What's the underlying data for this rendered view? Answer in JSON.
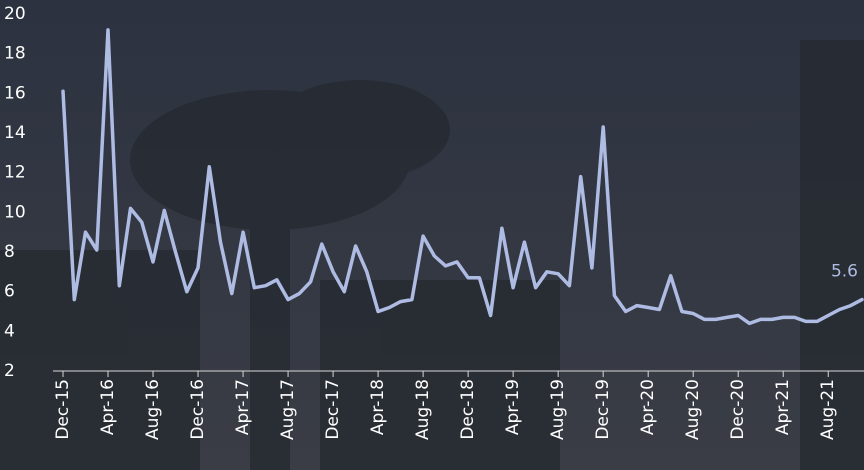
{
  "chart_data": {
    "type": "line",
    "categories": [
      "Dec-15",
      null,
      null,
      null,
      "Apr-16",
      null,
      null,
      null,
      "Aug-16",
      null,
      null,
      null,
      "Dec-16",
      null,
      null,
      null,
      "Apr-17",
      null,
      null,
      null,
      "Aug-17",
      null,
      null,
      null,
      "Dec-17",
      null,
      null,
      null,
      "Apr-18",
      null,
      null,
      null,
      "Aug-18",
      null,
      null,
      null,
      "Dec-18",
      null,
      null,
      null,
      "Apr-19",
      null,
      null,
      null,
      "Aug-19",
      null,
      null,
      null,
      "Dec-19",
      null,
      null,
      null,
      "Apr-20",
      null,
      null,
      null,
      "Aug-20",
      null,
      null,
      null,
      "Dec-20",
      null,
      null,
      null,
      "Apr-21",
      null,
      null,
      null,
      "Aug-21",
      null,
      null,
      null
    ],
    "series": [
      {
        "color": "#aebbe3",
        "values": [
          16.1,
          5.6,
          9.0,
          8.1,
          19.2,
          6.3,
          10.2,
          9.5,
          7.5,
          10.1,
          8.0,
          6.0,
          7.2,
          12.3,
          8.5,
          5.9,
          9.0,
          6.2,
          6.3,
          6.6,
          5.6,
          5.9,
          6.5,
          8.4,
          7.0,
          6.0,
          8.3,
          7.0,
          5.0,
          5.2,
          5.5,
          5.6,
          8.8,
          7.8,
          7.3,
          7.5,
          6.7,
          6.7,
          4.8,
          9.2,
          6.2,
          8.5,
          6.2,
          7.0,
          6.9,
          6.3,
          11.8,
          7.2,
          14.3,
          5.8,
          5.0,
          5.3,
          5.2,
          5.1,
          6.8,
          5.0,
          4.9,
          4.6,
          4.6,
          4.7,
          4.8,
          4.4,
          4.6,
          4.6,
          4.7,
          4.7,
          4.5,
          4.5,
          4.8,
          5.1,
          5.3,
          5.6
        ]
      }
    ],
    "ylim": [
      2,
      20
    ],
    "yticks": [
      2,
      4,
      6,
      8,
      10,
      12,
      14,
      16,
      18,
      20
    ],
    "grid": false
  }
}
